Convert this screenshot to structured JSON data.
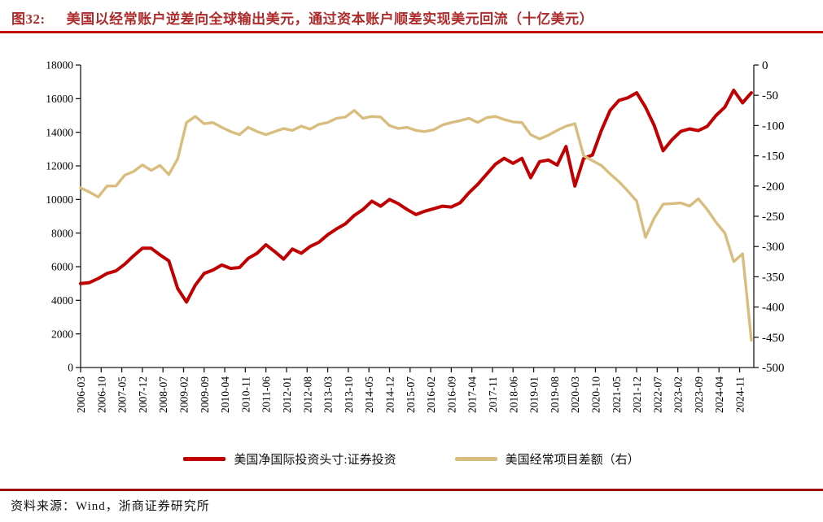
{
  "title": {
    "tag": "图32:",
    "text": "美国以经常账户逆差向全球输出美元，通过资本账户顺差实现美元回流（十亿美元）"
  },
  "source": {
    "label": "资料来源：",
    "text": "Wind，浙商证券研究所"
  },
  "colors": {
    "title_red": "#AE2C2C",
    "top_rule": "#C00000",
    "bottom_rule": "#9B0000",
    "axis": "#1a1a1a",
    "series_red": "#C00000",
    "series_tan": "#D8BD7F"
  },
  "chart_data": {
    "type": "line",
    "title": "美国以经常账户逆差向全球输出美元，通过资本账户顺差实现美元回流（十亿美元）",
    "grid": false,
    "legend_position": "bottom",
    "x_tick_labels": [
      "2006-03",
      "2006-10",
      "2007-05",
      "2007-12",
      "2008-07",
      "2009-02",
      "2009-09",
      "2010-04",
      "2010-11",
      "2011-06",
      "2012-01",
      "2012-08",
      "2013-03",
      "2013-10",
      "2014-05",
      "2014-12",
      "2015-07",
      "2016-02",
      "2016-09",
      "2017-04",
      "2017-11",
      "2018-06",
      "2019-01",
      "2019-08",
      "2020-03",
      "2020-10",
      "2021-05",
      "2021-12",
      "2022-07",
      "2023-02",
      "2023-09",
      "2024-04",
      "2024-11"
    ],
    "x": [
      "2006-03",
      "2006-06",
      "2006-09",
      "2006-12",
      "2007-03",
      "2007-06",
      "2007-09",
      "2007-12",
      "2008-03",
      "2008-06",
      "2008-09",
      "2008-12",
      "2009-03",
      "2009-06",
      "2009-09",
      "2009-12",
      "2010-03",
      "2010-06",
      "2010-09",
      "2010-12",
      "2011-03",
      "2011-06",
      "2011-09",
      "2011-12",
      "2012-03",
      "2012-06",
      "2012-09",
      "2012-12",
      "2013-03",
      "2013-06",
      "2013-09",
      "2013-12",
      "2014-03",
      "2014-06",
      "2014-09",
      "2014-12",
      "2015-03",
      "2015-06",
      "2015-09",
      "2015-12",
      "2016-03",
      "2016-06",
      "2016-09",
      "2016-12",
      "2017-03",
      "2017-06",
      "2017-09",
      "2017-12",
      "2018-03",
      "2018-06",
      "2018-09",
      "2018-12",
      "2019-03",
      "2019-06",
      "2019-09",
      "2019-12",
      "2020-03",
      "2020-06",
      "2020-09",
      "2020-12",
      "2021-03",
      "2021-06",
      "2021-09",
      "2021-12",
      "2022-03",
      "2022-06",
      "2022-09",
      "2022-12",
      "2023-03",
      "2023-06",
      "2023-09",
      "2023-12",
      "2024-03",
      "2024-06",
      "2024-09",
      "2024-12",
      "2025-03"
    ],
    "left_axis": {
      "min": 0,
      "max": 18000,
      "step": 2000,
      "tick_labels": [
        "0",
        "2000",
        "4000",
        "6000",
        "8000",
        "10000",
        "12000",
        "14000",
        "16000",
        "18000"
      ]
    },
    "right_axis": {
      "min": -500,
      "max": 0,
      "step": 50,
      "tick_labels": [
        "0",
        "-50",
        "-100",
        "-150",
        "-200",
        "-250",
        "-300",
        "-350",
        "-400",
        "-450",
        "-500"
      ]
    },
    "series": [
      {
        "name": "美国净国际投资头寸:证券投资",
        "axis": "left",
        "color": "#C00000",
        "values": [
          5000,
          5050,
          5300,
          5600,
          5750,
          6150,
          6650,
          7100,
          7100,
          6700,
          6350,
          4700,
          3900,
          4900,
          5600,
          5800,
          6100,
          5900,
          5950,
          6500,
          6800,
          7300,
          6900,
          6450,
          7050,
          6800,
          7200,
          7450,
          7900,
          8250,
          8550,
          9050,
          9400,
          9900,
          9600,
          10000,
          9750,
          9400,
          9100,
          9300,
          9450,
          9600,
          9550,
          9800,
          10400,
          10900,
          11500,
          12100,
          12450,
          12150,
          12450,
          11300,
          12250,
          12350,
          12050,
          13150,
          10800,
          12450,
          12650,
          14100,
          15300,
          15900,
          16050,
          16350,
          15500,
          14400,
          12900,
          13550,
          14050,
          14200,
          14100,
          14350,
          15000,
          15500,
          16500,
          15750,
          16350
        ]
      },
      {
        "name": "美国经常项目差额（右）",
        "axis": "right",
        "color": "#D8BD7F",
        "values": [
          -203,
          -210,
          -218,
          -200,
          -200,
          -182,
          -176,
          -165,
          -174,
          -166,
          -181,
          -155,
          -95,
          -85,
          -97,
          -95,
          -103,
          -110,
          -115,
          -103,
          -110,
          -115,
          -110,
          -105,
          -108,
          -101,
          -106,
          -98,
          -95,
          -88,
          -86,
          -75,
          -88,
          -85,
          -86,
          -100,
          -105,
          -103,
          -108,
          -110,
          -107,
          -99,
          -95,
          -92,
          -88,
          -95,
          -87,
          -85,
          -90,
          -94,
          -95,
          -115,
          -122,
          -116,
          -108,
          -101,
          -97,
          -150,
          -158,
          -166,
          -180,
          -193,
          -208,
          -225,
          -285,
          -253,
          -230,
          -229,
          -228,
          -233,
          -221,
          -239,
          -260,
          -278,
          -325,
          -312,
          -455
        ]
      }
    ]
  }
}
